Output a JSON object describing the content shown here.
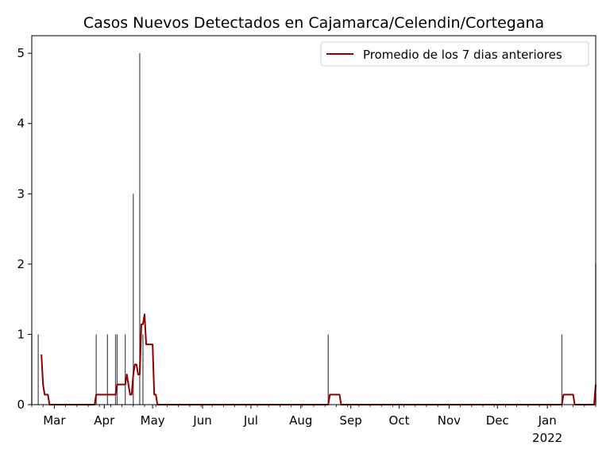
{
  "chart_data": {
    "type": "bar+line",
    "title": "Casos Nuevos Detectados en Cajamarca/Celendin/Cortegana",
    "xlabel": "",
    "ylabel": "",
    "x_range": [
      "2021-02-15",
      "2022-01-31"
    ],
    "ylim": [
      0,
      5.25
    ],
    "y_ticks": [
      0,
      1,
      2,
      3,
      4,
      5
    ],
    "x_ticks": [
      {
        "date": "2021-03-01",
        "label": "Mar"
      },
      {
        "date": "2021-04-01",
        "label": "Apr"
      },
      {
        "date": "2021-05-01",
        "label": "May"
      },
      {
        "date": "2021-06-01",
        "label": "Jun"
      },
      {
        "date": "2021-07-01",
        "label": "Jul"
      },
      {
        "date": "2021-08-01",
        "label": "Aug"
      },
      {
        "date": "2021-09-01",
        "label": "Sep"
      },
      {
        "date": "2021-10-01",
        "label": "Oct"
      },
      {
        "date": "2021-11-01",
        "label": "Nov"
      },
      {
        "date": "2021-12-01",
        "label": "Dec"
      },
      {
        "date": "2022-01-01",
        "label": "Jan",
        "sublabel": "2022"
      }
    ],
    "grid": false,
    "legend_position": "top-right",
    "bar_color": "#555555",
    "line_color": "#8b0000",
    "bars": [
      {
        "x": "2021-02-15",
        "y": 1
      },
      {
        "x": "2021-02-19",
        "y": 1
      },
      {
        "x": "2021-03-27",
        "y": 1
      },
      {
        "x": "2021-04-03",
        "y": 1
      },
      {
        "x": "2021-04-08",
        "y": 1
      },
      {
        "x": "2021-04-09",
        "y": 1
      },
      {
        "x": "2021-04-14",
        "y": 1
      },
      {
        "x": "2021-04-19",
        "y": 3
      },
      {
        "x": "2021-04-23",
        "y": 5
      },
      {
        "x": "2021-04-25",
        "y": 1
      },
      {
        "x": "2021-08-18",
        "y": 1
      },
      {
        "x": "2022-01-10",
        "y": 1
      },
      {
        "x": "2022-01-31",
        "y": 2
      }
    ],
    "series": [
      {
        "name": "Promedio de los 7 dias anteriores",
        "points": [
          {
            "x": "2021-02-21",
            "y": 0.714
          },
          {
            "x": "2021-02-22",
            "y": 0.286
          },
          {
            "x": "2021-02-23",
            "y": 0.143
          },
          {
            "x": "2021-02-25",
            "y": 0.143
          },
          {
            "x": "2021-02-26",
            "y": 0.0
          },
          {
            "x": "2021-03-26",
            "y": 0.0
          },
          {
            "x": "2021-03-27",
            "y": 0.143
          },
          {
            "x": "2021-04-08",
            "y": 0.143
          },
          {
            "x": "2021-04-09",
            "y": 0.286
          },
          {
            "x": "2021-04-14",
            "y": 0.286
          },
          {
            "x": "2021-04-15",
            "y": 0.429
          },
          {
            "x": "2021-04-16",
            "y": 0.286
          },
          {
            "x": "2021-04-17",
            "y": 0.143
          },
          {
            "x": "2021-04-18",
            "y": 0.143
          },
          {
            "x": "2021-04-19",
            "y": 0.429
          },
          {
            "x": "2021-04-20",
            "y": 0.571
          },
          {
            "x": "2021-04-21",
            "y": 0.571
          },
          {
            "x": "2021-04-22",
            "y": 0.429
          },
          {
            "x": "2021-04-23",
            "y": 0.429
          },
          {
            "x": "2021-04-24",
            "y": 1.143
          },
          {
            "x": "2021-04-25",
            "y": 1.143
          },
          {
            "x": "2021-04-26",
            "y": 1.286
          },
          {
            "x": "2021-04-27",
            "y": 0.857
          },
          {
            "x": "2021-05-01",
            "y": 0.857
          },
          {
            "x": "2021-05-02",
            "y": 0.143
          },
          {
            "x": "2021-05-03",
            "y": 0.143
          },
          {
            "x": "2021-05-04",
            "y": 0.0
          },
          {
            "x": "2021-08-18",
            "y": 0.0
          },
          {
            "x": "2021-08-19",
            "y": 0.143
          },
          {
            "x": "2021-08-25",
            "y": 0.143
          },
          {
            "x": "2021-08-26",
            "y": 0.0
          },
          {
            "x": "2022-01-10",
            "y": 0.0
          },
          {
            "x": "2022-01-11",
            "y": 0.143
          },
          {
            "x": "2022-01-17",
            "y": 0.143
          },
          {
            "x": "2022-01-18",
            "y": 0.0
          },
          {
            "x": "2022-01-30",
            "y": 0.0
          },
          {
            "x": "2022-01-31",
            "y": 0.286
          }
        ]
      }
    ]
  }
}
